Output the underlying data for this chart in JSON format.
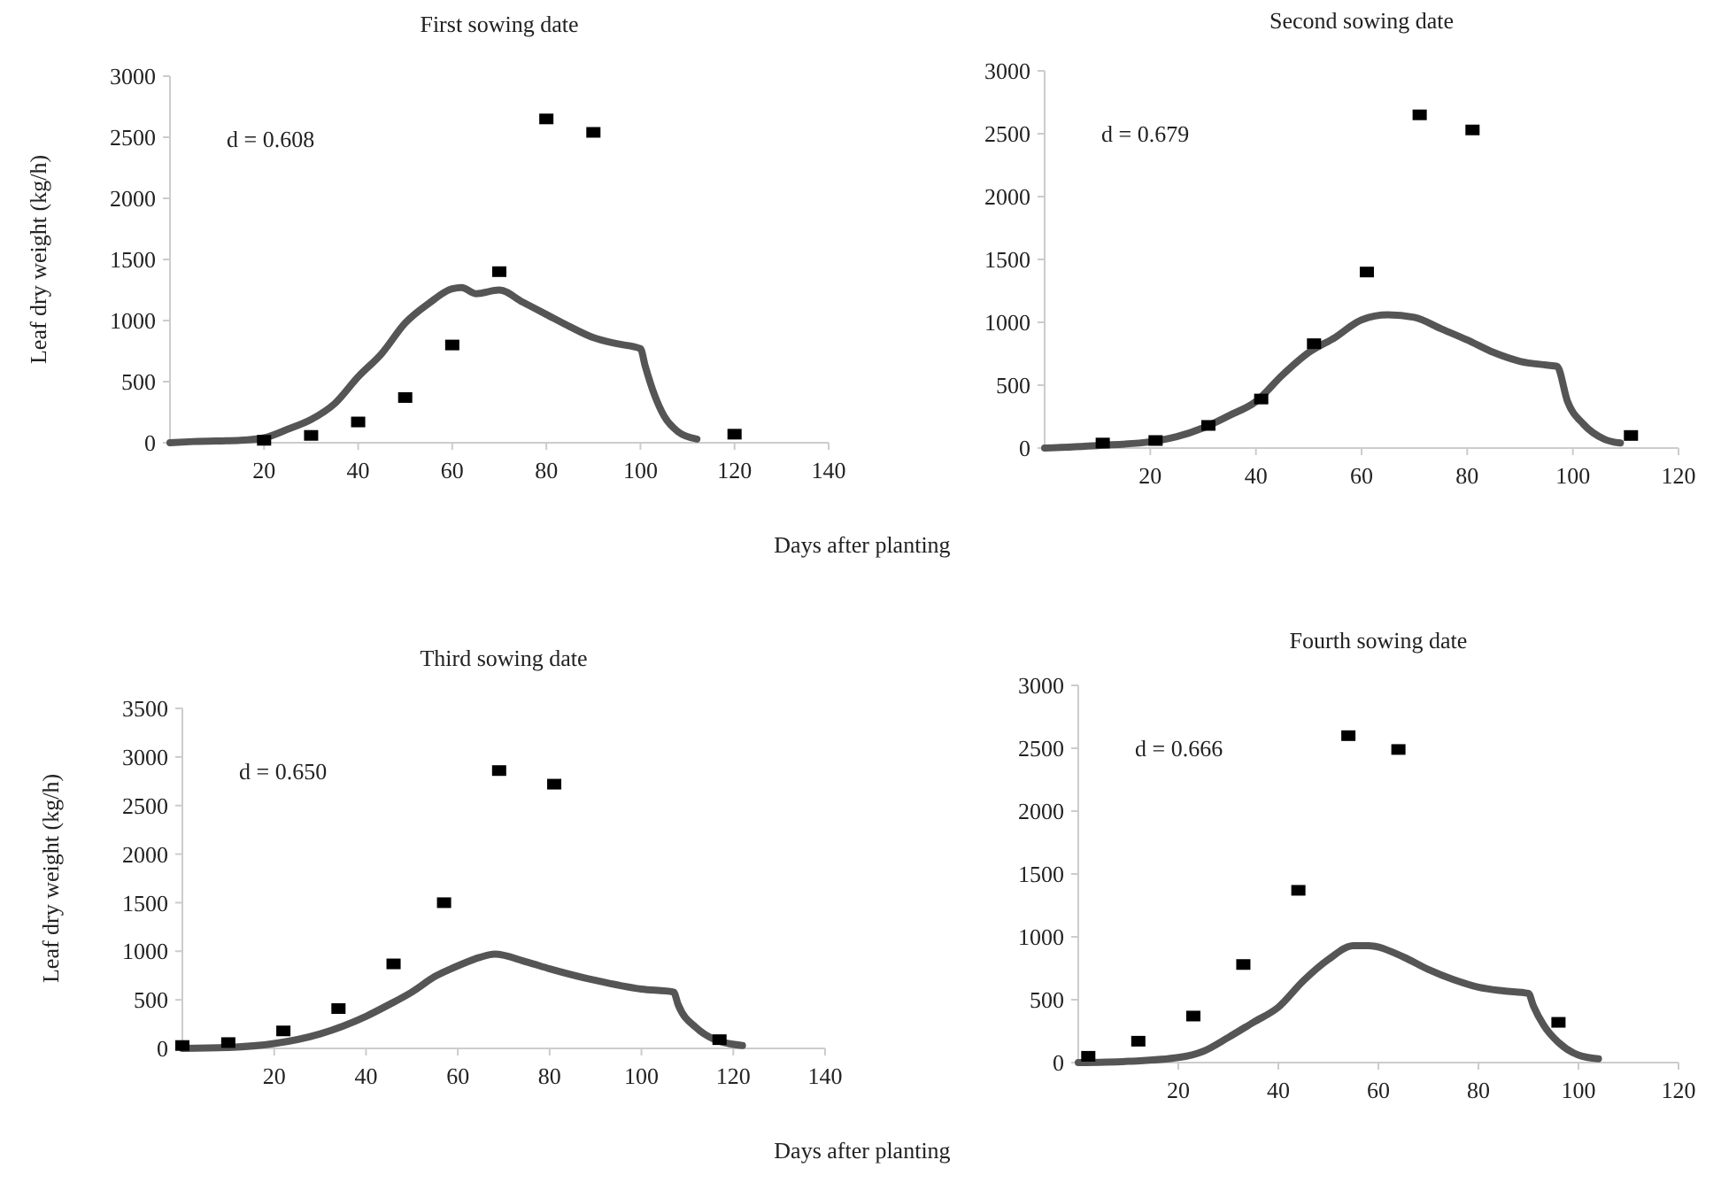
{
  "chart_data": [
    {
      "type": "line",
      "title": "First sowing date",
      "xlabel": "Days after planting",
      "ylabel": "Leaf dry weight (kg/h)",
      "xlim": [
        0,
        140
      ],
      "ylim": [
        0,
        3000
      ],
      "xticks": [
        20,
        40,
        60,
        80,
        100,
        120,
        140
      ],
      "yticks": [
        0,
        500,
        1000,
        1500,
        2000,
        2500,
        3000
      ],
      "grid": false,
      "annotations": [
        "d = 0.608"
      ],
      "series": [
        {
          "type": "line",
          "color": "#555555",
          "x": [
            0,
            5,
            15,
            20,
            25,
            30,
            35,
            40,
            45,
            50,
            55,
            60,
            62,
            65,
            70,
            75,
            80,
            85,
            90,
            95,
            100,
            101,
            103,
            105,
            108,
            112
          ],
          "values": [
            0,
            10,
            20,
            40,
            110,
            190,
            320,
            540,
            730,
            980,
            1140,
            1260,
            1270,
            1220,
            1250,
            1150,
            1050,
            950,
            860,
            810,
            770,
            630,
            390,
            220,
            90,
            30
          ]
        },
        {
          "type": "scatter",
          "color": "#000000",
          "marker": "square",
          "x": [
            20,
            30,
            40,
            50,
            60,
            70,
            80,
            90,
            120
          ],
          "values": [
            20,
            60,
            170,
            370,
            800,
            1400,
            2650,
            2540,
            70
          ]
        }
      ]
    },
    {
      "type": "line",
      "title": "Second sowing date",
      "xlim": [
        0,
        120
      ],
      "ylim": [
        0,
        3000
      ],
      "xticks": [
        20,
        40,
        60,
        80,
        100,
        120
      ],
      "yticks": [
        0,
        500,
        1000,
        1500,
        2000,
        2500,
        3000
      ],
      "grid": false,
      "annotations": [
        "d = 0.679"
      ],
      "series": [
        {
          "type": "line",
          "color": "#555555",
          "x": [
            0,
            10,
            20,
            25,
            30,
            35,
            40,
            45,
            50,
            55,
            60,
            65,
            70,
            75,
            80,
            85,
            90,
            95,
            97,
            99,
            102,
            106,
            109
          ],
          "values": [
            0,
            20,
            50,
            90,
            160,
            260,
            370,
            580,
            760,
            880,
            1020,
            1060,
            1040,
            950,
            860,
            760,
            690,
            660,
            650,
            370,
            190,
            70,
            40
          ]
        },
        {
          "type": "scatter",
          "color": "#000000",
          "marker": "square",
          "x": [
            11,
            21,
            31,
            41,
            51,
            61,
            71,
            81,
            111
          ],
          "values": [
            40,
            60,
            180,
            390,
            830,
            1400,
            2650,
            2530,
            100
          ]
        }
      ]
    },
    {
      "type": "line",
      "title": "Third sowing date",
      "xlabel": "Days after planting",
      "ylabel": "Leaf dry weight (kg/h)",
      "xlim": [
        0,
        140
      ],
      "ylim": [
        0,
        3500
      ],
      "xticks": [
        20,
        40,
        60,
        80,
        100,
        120,
        140
      ],
      "yticks": [
        0,
        500,
        1000,
        1500,
        2000,
        2500,
        3000,
        3500
      ],
      "grid": false,
      "annotations": [
        "d = 0.650"
      ],
      "series": [
        {
          "type": "line",
          "color": "#555555",
          "x": [
            0,
            10,
            20,
            30,
            40,
            45,
            50,
            55,
            60,
            65,
            68,
            75,
            80,
            90,
            100,
            107,
            108,
            112,
            116,
            119,
            122
          ],
          "values": [
            0,
            10,
            50,
            150,
            330,
            450,
            580,
            740,
            850,
            940,
            970,
            890,
            820,
            700,
            610,
            580,
            450,
            210,
            90,
            50,
            30
          ]
        },
        {
          "type": "scatter",
          "color": "#000000",
          "marker": "square",
          "x": [
            0,
            10,
            22,
            34,
            46,
            57,
            69,
            81,
            117
          ],
          "values": [
            30,
            60,
            180,
            410,
            870,
            1500,
            2860,
            2720,
            90
          ]
        }
      ]
    },
    {
      "type": "line",
      "title": "Fourth sowing date",
      "xlim": [
        0,
        120
      ],
      "ylim": [
        0,
        3000
      ],
      "xticks": [
        20,
        40,
        60,
        80,
        100,
        120
      ],
      "yticks": [
        0,
        500,
        1000,
        1500,
        2000,
        2500,
        3000
      ],
      "grid": false,
      "annotations": [
        "d = 0.666"
      ],
      "series": [
        {
          "type": "line",
          "color": "#555555",
          "x": [
            0,
            10,
            20,
            25,
            30,
            35,
            40,
            45,
            50,
            55,
            58,
            65,
            70,
            75,
            80,
            85,
            90,
            91,
            93,
            96,
            100,
            104
          ],
          "values": [
            0,
            10,
            40,
            90,
            200,
            320,
            440,
            650,
            820,
            930,
            930,
            840,
            740,
            660,
            600,
            570,
            550,
            450,
            300,
            160,
            60,
            30
          ]
        },
        {
          "type": "scatter",
          "color": "#000000",
          "marker": "square",
          "x": [
            2,
            12,
            23,
            33,
            44,
            54,
            64,
            96
          ],
          "values": [
            50,
            170,
            370,
            780,
            1370,
            2600,
            2490,
            320
          ]
        }
      ]
    }
  ]
}
